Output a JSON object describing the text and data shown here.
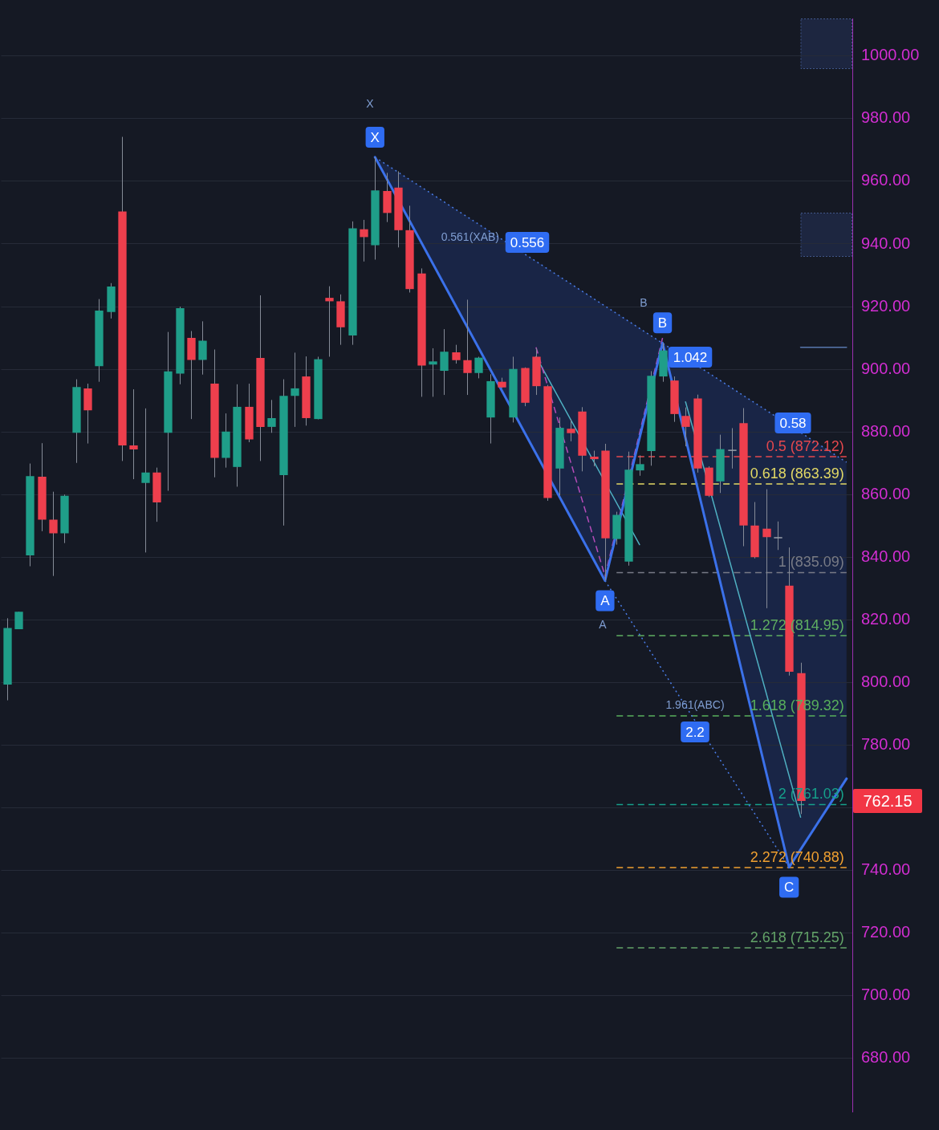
{
  "chart_data": {
    "type": "candlestick",
    "categories": [
      null,
      null,
      null,
      null,
      null,
      null,
      null,
      null,
      null,
      null,
      null,
      null,
      null,
      null,
      null,
      null,
      null,
      null,
      null,
      null,
      null,
      null,
      null,
      null,
      null,
      null,
      null,
      null,
      null,
      null,
      null,
      null,
      null,
      null,
      null,
      null,
      null,
      null,
      null,
      null,
      null,
      null,
      null,
      null,
      null,
      null,
      null,
      null,
      null,
      null,
      null,
      null,
      null,
      null,
      null,
      null,
      null,
      null,
      null,
      null,
      null,
      null,
      null,
      null,
      null,
      null,
      null,
      null,
      null,
      null,
      null,
      null,
      null,
      null
    ],
    "ohlc": [
      [
        799.3,
        820.5,
        794.3,
        817.4
      ],
      [
        817.0,
        822.6,
        817.0,
        822.6
      ],
      [
        840.6,
        869.9,
        837.1,
        865.9
      ],
      [
        865.7,
        876.4,
        848.3,
        852.0
      ],
      [
        852.0,
        860.9,
        834.0,
        847.6
      ],
      [
        847.6,
        860.0,
        844.5,
        859.6
      ],
      [
        879.7,
        896.8,
        870.1,
        894.3
      ],
      [
        893.9,
        895.4,
        876.3,
        886.9
      ],
      [
        901.0,
        922.4,
        896.0,
        918.7
      ],
      [
        918.3,
        927.5,
        916.2,
        926.4
      ],
      [
        950.4,
        974.2,
        870.7,
        875.7
      ],
      [
        875.7,
        893.6,
        864.9,
        874.4
      ],
      [
        863.7,
        887.5,
        841.5,
        867.0
      ],
      [
        867.0,
        868.6,
        851.3,
        857.5
      ],
      [
        879.7,
        911.9,
        861.2,
        899.3
      ],
      [
        898.6,
        920.0,
        895.2,
        919.5
      ],
      [
        910.0,
        912.2,
        884.1,
        903.0
      ],
      [
        903.0,
        915.3,
        898.3,
        909.1
      ],
      [
        895.4,
        906.3,
        865.5,
        871.7
      ],
      [
        871.7,
        885.9,
        868.6,
        880.1
      ],
      [
        868.8,
        895.2,
        862.5,
        888.0
      ],
      [
        888.0,
        895.4,
        876.7,
        877.6
      ],
      [
        903.6,
        923.6,
        870.7,
        881.6
      ],
      [
        881.6,
        890.2,
        879.7,
        884.4
      ],
      [
        866.2,
        896.8,
        850.1,
        891.5
      ],
      [
        891.5,
        905.3,
        881.6,
        893.9
      ],
      [
        897.7,
        904.1,
        882.0,
        884.4
      ],
      [
        884.1,
        904.0,
        884.0,
        903.2
      ],
      [
        922.8,
        926.5,
        904.0,
        921.7
      ],
      [
        921.7,
        923.9,
        907.8,
        913.4
      ],
      [
        910.8,
        947.2,
        907.8,
        945.0
      ],
      [
        944.7,
        947.7,
        934.4,
        942.2
      ],
      [
        939.6,
        967.7,
        935.0,
        957.1
      ],
      [
        956.9,
        962.7,
        947.0,
        949.9
      ],
      [
        958.0,
        963.2,
        938.9,
        944.4
      ],
      [
        944.4,
        952.2,
        924.5,
        925.6
      ],
      [
        930.6,
        932.2,
        891.2,
        901.2
      ],
      [
        901.5,
        906.7,
        891.2,
        902.5
      ],
      [
        899.5,
        912.8,
        891.8,
        905.6
      ],
      [
        905.4,
        907.8,
        901.8,
        902.9
      ],
      [
        902.9,
        922.2,
        891.8,
        898.8
      ],
      [
        898.8,
        904.0,
        897.1,
        903.7
      ],
      [
        884.6,
        898.4,
        876.3,
        896.2
      ],
      [
        896.0,
        897.3,
        894.0,
        894.2
      ],
      [
        884.6,
        904.0,
        883.0,
        900.1
      ],
      [
        900.4,
        900.6,
        888.2,
        889.3
      ],
      [
        904.0,
        906.7,
        891.8,
        894.6
      ],
      [
        894.6,
        895.0,
        858.0,
        858.9
      ],
      [
        868.3,
        884.6,
        859.7,
        881.3
      ],
      [
        881.0,
        884.0,
        877.0,
        879.6
      ],
      [
        886.5,
        887.9,
        867.4,
        872.4
      ],
      [
        872.1,
        874.0,
        869.0,
        871.3
      ],
      [
        874.0,
        876.2,
        832.5,
        846.0
      ],
      [
        845.8,
        854.5,
        844.0,
        853.5
      ],
      [
        838.6,
        873.7,
        837.3,
        867.9
      ],
      [
        867.7,
        872.5,
        866.0,
        869.7
      ],
      [
        873.9,
        899.4,
        869.2,
        897.9
      ],
      [
        897.7,
        908.4,
        896.0,
        906.0
      ],
      [
        896.4,
        897.7,
        883.2,
        885.7
      ],
      [
        885.1,
        887.8,
        875.4,
        881.6
      ],
      [
        890.7,
        891.9,
        867.0,
        868.3
      ],
      [
        868.6,
        869.0,
        859.2,
        859.6
      ],
      [
        864.2,
        879.1,
        860.5,
        874.5
      ],
      [
        874.3,
        881.2,
        868.3,
        874.3
      ],
      [
        882.8,
        887.6,
        843.5,
        850.1
      ],
      [
        850.1,
        857.6,
        839.6,
        840.0
      ],
      [
        849.1,
        861.7,
        823.7,
        846.4
      ],
      [
        846.4,
        851.4,
        842.3,
        846.4
      ],
      [
        830.9,
        843.1,
        802.2,
        803.4
      ],
      [
        803.0,
        806.3,
        758.0,
        762.15
      ],
      null,
      null,
      null,
      null
    ],
    "colors": [
      "#1f9e89",
      "#1f9e89",
      "#1f9e89",
      "#ee3f4d",
      "#ee3f4d",
      "#1f9e89",
      "#1f9e89",
      "#ee3f4d",
      "#1f9e89",
      "#1f9e89",
      "#ee3f4d",
      "#ee3f4d",
      "#1f9e89",
      "#ee3f4d",
      "#1f9e89",
      "#1f9e89",
      "#ee3f4d",
      "#1f9e89",
      "#ee3f4d",
      "#1f9e89",
      "#1f9e89",
      "#ee3f4d",
      "#ee3f4d",
      "#1f9e89",
      "#1f9e89",
      "#1f9e89",
      "#ee3f4d",
      "#1f9e89",
      "#ee3f4d",
      "#ee3f4d",
      "#1f9e89",
      "#ee3f4d",
      "#1f9e89",
      "#ee3f4d",
      "#ee3f4d",
      "#ee3f4d",
      "#ee3f4d",
      "#1f9e89",
      "#1f9e89",
      "#ee3f4d",
      "#ee3f4d",
      "#1f9e89",
      "#1f9e89",
      "#ee3f4d",
      "#1f9e89",
      "#ee3f4d",
      "#ee3f4d",
      "#ee3f4d",
      "#1f9e89",
      "#ee3f4d",
      "#ee3f4d",
      "#ee3f4d",
      "#ee3f4d",
      "#1f9e89",
      "#1f9e89",
      "#1f9e89",
      "#1f9e89",
      "#1f9e89",
      "#ee3f4d",
      "#ee3f4d",
      "#ee3f4d",
      "#ee3f4d",
      "#1f9e89",
      "#9aa0aa",
      "#ee3f4d",
      "#ee3f4d",
      "#ee3f4d",
      "#9aa0aa",
      "#ee3f4d",
      "#ee3f4d",
      null,
      null,
      null,
      null
    ],
    "series": [
      {
        "type": "line",
        "color": "#3b71ea",
        "line_style": "solid",
        "values": [
          null,
          null,
          null,
          null,
          null,
          null,
          null,
          null,
          null,
          null,
          null,
          null,
          null,
          null,
          null,
          null,
          null,
          null,
          null,
          null,
          null,
          null,
          null,
          null,
          null,
          null,
          null,
          null,
          null,
          null,
          null,
          null,
          967.7,
          null,
          null,
          null,
          null,
          null,
          null,
          null,
          null,
          null,
          null,
          null,
          null,
          null,
          null,
          null,
          null,
          null,
          null,
          null,
          832.5,
          null,
          null,
          null,
          null,
          908.4,
          null,
          null,
          null,
          null,
          null,
          null,
          null,
          null,
          null,
          null,
          741,
          null,
          null,
          null,
          null,
          769.3
        ],
        "value_labels": [
          null,
          null,
          null,
          null,
          null,
          null,
          null,
          null,
          null,
          null,
          null,
          null,
          null,
          null,
          null,
          null,
          null,
          null,
          null,
          null,
          null,
          null,
          null,
          null,
          null,
          null,
          null,
          null,
          null,
          null,
          null,
          null,
          "X",
          null,
          null,
          null,
          null,
          null,
          null,
          null,
          null,
          null,
          null,
          null,
          null,
          null,
          null,
          null,
          null,
          null,
          null,
          null,
          "A",
          null,
          null,
          null,
          null,
          "B",
          null,
          null,
          null,
          null,
          null,
          null,
          null,
          null,
          null,
          null,
          "C",
          null,
          null,
          null,
          null,
          null
        ]
      },
      {
        "type": "line",
        "color": "#4a7de8",
        "line_style": "dotted",
        "values": [
          null,
          null,
          null,
          null,
          null,
          null,
          null,
          null,
          null,
          null,
          null,
          null,
          null,
          null,
          null,
          null,
          null,
          null,
          null,
          null,
          null,
          null,
          null,
          null,
          null,
          null,
          null,
          null,
          null,
          null,
          null,
          null,
          967.7,
          null,
          null,
          null,
          null,
          null,
          null,
          null,
          null,
          null,
          null,
          null,
          null,
          null,
          null,
          null,
          null,
          null,
          null,
          null,
          null,
          null,
          null,
          null,
          null,
          null,
          null,
          null,
          null,
          null,
          null,
          null,
          null,
          null,
          null,
          null,
          null,
          null,
          null,
          null,
          null,
          870.3
        ]
      },
      {
        "type": "line",
        "color": "#4a7de8",
        "line_style": "dotted",
        "values": [
          null,
          null,
          null,
          null,
          null,
          null,
          null,
          null,
          null,
          null,
          null,
          null,
          null,
          null,
          null,
          null,
          null,
          null,
          null,
          null,
          null,
          null,
          null,
          null,
          null,
          null,
          null,
          null,
          null,
          null,
          null,
          null,
          null,
          null,
          null,
          null,
          null,
          null,
          null,
          null,
          null,
          null,
          null,
          null,
          null,
          null,
          null,
          null,
          null,
          null,
          null,
          null,
          832.5,
          null,
          null,
          null,
          null,
          null,
          null,
          null,
          null,
          null,
          null,
          null,
          null,
          null,
          null,
          null,
          741,
          null,
          null,
          null,
          null,
          null
        ]
      },
      {
        "type": "line",
        "color": "#b64cb8",
        "line_style": "dashed",
        "values": [
          null,
          null,
          null,
          null,
          null,
          null,
          null,
          null,
          null,
          null,
          null,
          null,
          null,
          null,
          null,
          null,
          null,
          null,
          null,
          null,
          null,
          null,
          null,
          null,
          null,
          null,
          null,
          null,
          null,
          null,
          null,
          null,
          null,
          null,
          null,
          null,
          null,
          null,
          null,
          null,
          null,
          null,
          null,
          null,
          null,
          null,
          907,
          null,
          null,
          null,
          null,
          null,
          834,
          null,
          null,
          null,
          null,
          910,
          null,
          null,
          null,
          null,
          null,
          null,
          null,
          null,
          null,
          null,
          null,
          null,
          null,
          null,
          null,
          null
        ]
      },
      {
        "type": "line",
        "color": "#4fb0c2",
        "line_style": "solid",
        "values": [
          null,
          null,
          null,
          null,
          null,
          null,
          null,
          null,
          null,
          null,
          null,
          null,
          null,
          null,
          null,
          null,
          null,
          null,
          null,
          null,
          null,
          null,
          null,
          null,
          null,
          null,
          null,
          null,
          null,
          null,
          null,
          null,
          null,
          null,
          null,
          null,
          null,
          null,
          null,
          null,
          null,
          null,
          null,
          null,
          null,
          null,
          904,
          null,
          null,
          null,
          null,
          null,
          null,
          null,
          null,
          844,
          null,
          null,
          null,
          null,
          null,
          null,
          null,
          null,
          null,
          null,
          null,
          null,
          null,
          null,
          null,
          null,
          null,
          null
        ]
      },
      {
        "type": "line",
        "color": "#4fb0c2",
        "line_style": "solid",
        "values": [
          null,
          null,
          null,
          null,
          null,
          null,
          null,
          null,
          null,
          null,
          null,
          null,
          null,
          null,
          null,
          null,
          null,
          null,
          null,
          null,
          null,
          null,
          null,
          null,
          null,
          null,
          null,
          null,
          null,
          null,
          null,
          null,
          null,
          null,
          null,
          null,
          null,
          null,
          null,
          null,
          null,
          null,
          null,
          null,
          null,
          null,
          null,
          null,
          null,
          null,
          null,
          null,
          null,
          null,
          null,
          null,
          null,
          null,
          null,
          889.6,
          null,
          null,
          null,
          null,
          null,
          null,
          null,
          null,
          null,
          757,
          null,
          null,
          null,
          null
        ]
      },
      {
        "type": "line",
        "name": "0.5 (872.12)",
        "color": "#e5484d",
        "line_style": "dashed",
        "values": [
          null,
          null,
          null,
          null,
          null,
          null,
          null,
          null,
          null,
          null,
          null,
          null,
          null,
          null,
          null,
          null,
          null,
          null,
          null,
          null,
          null,
          null,
          null,
          null,
          null,
          null,
          null,
          null,
          null,
          null,
          null,
          null,
          null,
          null,
          null,
          null,
          null,
          null,
          null,
          null,
          null,
          null,
          null,
          null,
          null,
          null,
          null,
          null,
          null,
          null,
          null,
          null,
          null,
          872.12,
          null,
          null,
          null,
          null,
          null,
          null,
          null,
          null,
          null,
          null,
          null,
          null,
          null,
          null,
          null,
          null,
          null,
          null,
          null,
          872.12
        ]
      },
      {
        "type": "line",
        "name": "0.618 (863.39)",
        "color": "#e3d965",
        "line_style": "dashed",
        "values": [
          null,
          null,
          null,
          null,
          null,
          null,
          null,
          null,
          null,
          null,
          null,
          null,
          null,
          null,
          null,
          null,
          null,
          null,
          null,
          null,
          null,
          null,
          null,
          null,
          null,
          null,
          null,
          null,
          null,
          null,
          null,
          null,
          null,
          null,
          null,
          null,
          null,
          null,
          null,
          null,
          null,
          null,
          null,
          null,
          null,
          null,
          null,
          null,
          null,
          null,
          null,
          null,
          null,
          863.39,
          null,
          null,
          null,
          null,
          null,
          null,
          null,
          null,
          null,
          null,
          null,
          null,
          null,
          null,
          null,
          null,
          null,
          null,
          null,
          863.39
        ]
      },
      {
        "type": "line",
        "name": "1 (835.09)",
        "color": "#787b86",
        "line_style": "dashed",
        "values": [
          null,
          null,
          null,
          null,
          null,
          null,
          null,
          null,
          null,
          null,
          null,
          null,
          null,
          null,
          null,
          null,
          null,
          null,
          null,
          null,
          null,
          null,
          null,
          null,
          null,
          null,
          null,
          null,
          null,
          null,
          null,
          null,
          null,
          null,
          null,
          null,
          null,
          null,
          null,
          null,
          null,
          null,
          null,
          null,
          null,
          null,
          null,
          null,
          null,
          null,
          null,
          null,
          null,
          835.09,
          null,
          null,
          null,
          null,
          null,
          null,
          null,
          null,
          null,
          null,
          null,
          null,
          null,
          null,
          null,
          null,
          null,
          null,
          null,
          835.09
        ]
      },
      {
        "type": "line",
        "name": "1.272 (814.95)",
        "color": "#5fae62",
        "line_style": "dashed",
        "values": [
          null,
          null,
          null,
          null,
          null,
          null,
          null,
          null,
          null,
          null,
          null,
          null,
          null,
          null,
          null,
          null,
          null,
          null,
          null,
          null,
          null,
          null,
          null,
          null,
          null,
          null,
          null,
          null,
          null,
          null,
          null,
          null,
          null,
          null,
          null,
          null,
          null,
          null,
          null,
          null,
          null,
          null,
          null,
          null,
          null,
          null,
          null,
          null,
          null,
          null,
          null,
          null,
          null,
          814.95,
          null,
          null,
          null,
          null,
          null,
          null,
          null,
          null,
          null,
          null,
          null,
          null,
          null,
          null,
          null,
          null,
          null,
          null,
          null,
          814.95
        ]
      },
      {
        "type": "line",
        "name": "1.618 (789.32)",
        "color": "#58b05c",
        "line_style": "dashed",
        "values": [
          null,
          null,
          null,
          null,
          null,
          null,
          null,
          null,
          null,
          null,
          null,
          null,
          null,
          null,
          null,
          null,
          null,
          null,
          null,
          null,
          null,
          null,
          null,
          null,
          null,
          null,
          null,
          null,
          null,
          null,
          null,
          null,
          null,
          null,
          null,
          null,
          null,
          null,
          null,
          null,
          null,
          null,
          null,
          null,
          null,
          null,
          null,
          null,
          null,
          null,
          null,
          null,
          null,
          789.32,
          null,
          null,
          null,
          null,
          null,
          null,
          null,
          null,
          null,
          null,
          null,
          null,
          null,
          null,
          null,
          null,
          null,
          null,
          null,
          789.32
        ]
      },
      {
        "type": "line",
        "name": "2 (761.03)",
        "color": "#16a08a",
        "line_style": "dashed",
        "values": [
          null,
          null,
          null,
          null,
          null,
          null,
          null,
          null,
          null,
          null,
          null,
          null,
          null,
          null,
          null,
          null,
          null,
          null,
          null,
          null,
          null,
          null,
          null,
          null,
          null,
          null,
          null,
          null,
          null,
          null,
          null,
          null,
          null,
          null,
          null,
          null,
          null,
          null,
          null,
          null,
          null,
          null,
          null,
          null,
          null,
          null,
          null,
          null,
          null,
          null,
          null,
          null,
          null,
          761.03,
          null,
          null,
          null,
          null,
          null,
          null,
          null,
          null,
          null,
          null,
          null,
          null,
          null,
          null,
          null,
          null,
          null,
          null,
          null,
          761.03
        ]
      },
      {
        "type": "line",
        "name": "2.272 (740.88)",
        "color": "#f0a030",
        "line_style": "dashed",
        "values": [
          null,
          null,
          null,
          null,
          null,
          null,
          null,
          null,
          null,
          null,
          null,
          null,
          null,
          null,
          null,
          null,
          null,
          null,
          null,
          null,
          null,
          null,
          null,
          null,
          null,
          null,
          null,
          null,
          null,
          null,
          null,
          null,
          null,
          null,
          null,
          null,
          null,
          null,
          null,
          null,
          null,
          null,
          null,
          null,
          null,
          null,
          null,
          null,
          null,
          null,
          null,
          null,
          null,
          740.88,
          null,
          null,
          null,
          null,
          null,
          null,
          null,
          null,
          null,
          null,
          null,
          null,
          null,
          null,
          null,
          null,
          null,
          null,
          null,
          740.88
        ]
      },
      {
        "type": "line",
        "name": "2.618 (715.25)",
        "color": "#63a368",
        "line_style": "dashed",
        "values": [
          null,
          null,
          null,
          null,
          null,
          null,
          null,
          null,
          null,
          null,
          null,
          null,
          null,
          null,
          null,
          null,
          null,
          null,
          null,
          null,
          null,
          null,
          null,
          null,
          null,
          null,
          null,
          null,
          null,
          null,
          null,
          null,
          null,
          null,
          null,
          null,
          null,
          null,
          null,
          null,
          null,
          null,
          null,
          null,
          null,
          null,
          null,
          null,
          null,
          null,
          null,
          null,
          null,
          715.25,
          null,
          null,
          null,
          null,
          null,
          null,
          null,
          null,
          null,
          null,
          null,
          null,
          null,
          null,
          null,
          null,
          null,
          null,
          null,
          715.25
        ]
      },
      {
        "type": "line",
        "color": "#5877ad",
        "line_style": "solid",
        "values": [
          null,
          null,
          null,
          null,
          null,
          null,
          null,
          null,
          null,
          null,
          null,
          null,
          null,
          null,
          null,
          null,
          null,
          null,
          null,
          null,
          null,
          null,
          null,
          null,
          null,
          null,
          null,
          null,
          null,
          null,
          null,
          null,
          null,
          null,
          null,
          null,
          null,
          null,
          null,
          null,
          null,
          null,
          null,
          null,
          null,
          null,
          null,
          null,
          null,
          null,
          null,
          null,
          null,
          null,
          null,
          null,
          null,
          null,
          null,
          null,
          null,
          null,
          null,
          null,
          null,
          null,
          null,
          null,
          null,
          907,
          null,
          null,
          null,
          907
        ]
      }
    ],
    "ylim": [
      663,
      1012
    ],
    "yticks": [
      {
        "value": 680,
        "label": "680.00"
      },
      {
        "value": 700,
        "label": "700.00"
      },
      {
        "value": 720,
        "label": "720.00"
      },
      {
        "value": 740,
        "label": "740.00"
      },
      {
        "value": 760,
        "label": null
      },
      {
        "value": 780,
        "label": "780.00"
      },
      {
        "value": 800,
        "label": "800.00"
      },
      {
        "value": 820,
        "label": "820.00"
      },
      {
        "value": 840,
        "label": "840.00"
      },
      {
        "value": 860,
        "label": "860.00"
      },
      {
        "value": 880,
        "label": "880.00"
      },
      {
        "value": 900,
        "label": "900.00"
      },
      {
        "value": 920,
        "label": "920.00"
      },
      {
        "value": 940,
        "label": "940.00"
      },
      {
        "value": 960,
        "label": "960.00"
      },
      {
        "value": 980,
        "label": "980.00"
      },
      {
        "value": 1000,
        "label": "1000.00"
      }
    ],
    "tick_labels": "y",
    "grid": "y",
    "annotations": [
      "0.556",
      "0.561(XAB)",
      "1.042",
      "0.58",
      "2.2",
      "1.961(ABC)",
      "X",
      "A",
      "B",
      "762.15"
    ]
  }
}
